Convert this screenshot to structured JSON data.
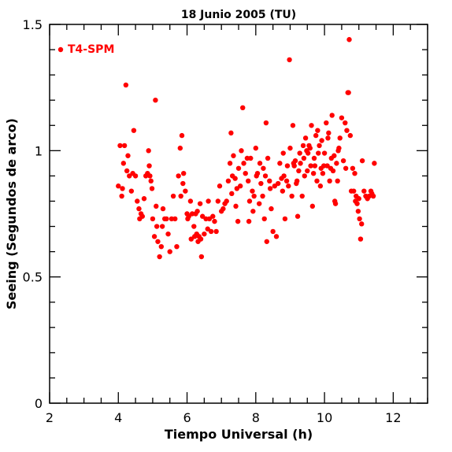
{
  "chart_data": {
    "type": "scatter",
    "title": "18 Junio 2005 (TU)",
    "xlabel": "Tiempo Universal (h)",
    "ylabel": "Seeing (Segundos de arco)",
    "xlim": [
      2,
      13
    ],
    "ylim": [
      0,
      1.5
    ],
    "x_ticks": [
      2,
      4,
      6,
      8,
      10,
      12
    ],
    "x_tick_labels": [
      "2",
      "4",
      "6",
      "8",
      "10",
      "12"
    ],
    "y_ticks": [
      0,
      0.5,
      1,
      1.5
    ],
    "y_tick_labels": [
      "0",
      "0.5",
      "1",
      "1.5"
    ],
    "grid": false,
    "legend_position": "top-left",
    "series": [
      {
        "name": "T4-SPM",
        "color": "#ff0000",
        "points": [
          [
            4.0,
            0.86
          ],
          [
            4.05,
            1.02
          ],
          [
            4.1,
            0.82
          ],
          [
            4.12,
            0.85
          ],
          [
            4.15,
            0.95
          ],
          [
            4.18,
            1.02
          ],
          [
            4.22,
            1.26
          ],
          [
            4.25,
            0.92
          ],
          [
            4.28,
            0.98
          ],
          [
            4.32,
            0.9
          ],
          [
            4.38,
            0.84
          ],
          [
            4.42,
            0.91
          ],
          [
            4.45,
            1.08
          ],
          [
            4.5,
            0.9
          ],
          [
            4.55,
            0.8
          ],
          [
            4.6,
            0.77
          ],
          [
            4.62,
            0.73
          ],
          [
            4.66,
            0.75
          ],
          [
            4.7,
            0.74
          ],
          [
            4.75,
            0.81
          ],
          [
            4.8,
            0.9
          ],
          [
            4.85,
            0.91
          ],
          [
            4.88,
            1.0
          ],
          [
            4.9,
            0.94
          ],
          [
            4.92,
            0.9
          ],
          [
            4.95,
            0.88
          ],
          [
            4.98,
            0.85
          ],
          [
            5.0,
            0.73
          ],
          [
            5.05,
            0.66
          ],
          [
            5.08,
            1.2
          ],
          [
            5.1,
            0.78
          ],
          [
            5.12,
            0.7
          ],
          [
            5.15,
            0.64
          ],
          [
            5.2,
            0.58
          ],
          [
            5.25,
            0.62
          ],
          [
            5.28,
            0.7
          ],
          [
            5.3,
            0.77
          ],
          [
            5.35,
            0.73
          ],
          [
            5.4,
            0.73
          ],
          [
            5.45,
            0.67
          ],
          [
            5.5,
            0.6
          ],
          [
            5.55,
            0.73
          ],
          [
            5.6,
            0.82
          ],
          [
            5.65,
            0.73
          ],
          [
            5.7,
            0.62
          ],
          [
            5.75,
            0.9
          ],
          [
            5.8,
            1.01
          ],
          [
            5.82,
            0.82
          ],
          [
            5.85,
            1.06
          ],
          [
            5.88,
            0.87
          ],
          [
            5.9,
            0.91
          ],
          [
            5.95,
            0.84
          ],
          [
            6.0,
            0.75
          ],
          [
            6.02,
            0.73
          ],
          [
            6.05,
            0.74
          ],
          [
            6.1,
            0.8
          ],
          [
            6.12,
            0.65
          ],
          [
            6.15,
            0.75
          ],
          [
            6.2,
            0.7
          ],
          [
            6.22,
            0.66
          ],
          [
            6.25,
            0.75
          ],
          [
            6.28,
            0.67
          ],
          [
            6.3,
            0.76
          ],
          [
            6.32,
            0.64
          ],
          [
            6.35,
            0.66
          ],
          [
            6.38,
            0.79
          ],
          [
            6.4,
            0.65
          ],
          [
            6.42,
            0.58
          ],
          [
            6.45,
            0.74
          ],
          [
            6.5,
            0.67
          ],
          [
            6.55,
            0.73
          ],
          [
            6.6,
            0.69
          ],
          [
            6.62,
            0.8
          ],
          [
            6.65,
            0.73
          ],
          [
            6.7,
            0.68
          ],
          [
            6.75,
            0.74
          ],
          [
            6.8,
            0.72
          ],
          [
            6.85,
            0.68
          ],
          [
            6.9,
            0.8
          ],
          [
            6.95,
            0.86
          ],
          [
            7.0,
            0.76
          ],
          [
            7.05,
            0.77
          ],
          [
            7.1,
            0.79
          ],
          [
            7.15,
            0.8
          ],
          [
            7.2,
            0.88
          ],
          [
            7.25,
            0.95
          ],
          [
            7.28,
            1.07
          ],
          [
            7.3,
            0.83
          ],
          [
            7.32,
            0.9
          ],
          [
            7.35,
            0.98
          ],
          [
            7.4,
            0.89
          ],
          [
            7.42,
            0.78
          ],
          [
            7.45,
            0.85
          ],
          [
            7.48,
            0.72
          ],
          [
            7.5,
            0.93
          ],
          [
            7.55,
            0.86
          ],
          [
            7.58,
            1.0
          ],
          [
            7.62,
            1.17
          ],
          [
            7.65,
            0.95
          ],
          [
            7.7,
            0.91
          ],
          [
            7.75,
            0.97
          ],
          [
            7.78,
            0.88
          ],
          [
            7.8,
            0.72
          ],
          [
            7.82,
            0.8
          ],
          [
            7.85,
            0.97
          ],
          [
            7.9,
            0.84
          ],
          [
            7.92,
            0.76
          ],
          [
            7.95,
            0.82
          ],
          [
            8.0,
            1.01
          ],
          [
            8.02,
            0.9
          ],
          [
            8.05,
            0.91
          ],
          [
            8.1,
            0.79
          ],
          [
            8.12,
            0.95
          ],
          [
            8.15,
            0.87
          ],
          [
            8.2,
            0.82
          ],
          [
            8.22,
            0.93
          ],
          [
            8.25,
            0.73
          ],
          [
            8.28,
            0.9
          ],
          [
            8.3,
            1.11
          ],
          [
            8.32,
            0.64
          ],
          [
            8.35,
            0.97
          ],
          [
            8.4,
            0.88
          ],
          [
            8.42,
            0.85
          ],
          [
            8.45,
            0.77
          ],
          [
            8.5,
            0.68
          ],
          [
            8.55,
            0.86
          ],
          [
            8.6,
            0.66
          ],
          [
            8.65,
            0.87
          ],
          [
            8.7,
            0.95
          ],
          [
            8.75,
            0.89
          ],
          [
            8.78,
            0.84
          ],
          [
            8.8,
            0.99
          ],
          [
            8.82,
            0.9
          ],
          [
            8.85,
            0.73
          ],
          [
            8.9,
            0.88
          ],
          [
            8.92,
            0.94
          ],
          [
            8.95,
            0.86
          ],
          [
            8.98,
            1.36
          ],
          [
            9.0,
            1.01
          ],
          [
            9.05,
            0.82
          ],
          [
            9.08,
            1.1
          ],
          [
            9.1,
            0.95
          ],
          [
            9.12,
            0.94
          ],
          [
            9.15,
            0.96
          ],
          [
            9.18,
            0.87
          ],
          [
            9.2,
            0.88
          ],
          [
            9.22,
            0.74
          ],
          [
            9.25,
            0.92
          ],
          [
            9.28,
            0.99
          ],
          [
            9.3,
            0.95
          ],
          [
            9.35,
            0.82
          ],
          [
            9.38,
            1.02
          ],
          [
            9.4,
            0.97
          ],
          [
            9.42,
            0.9
          ],
          [
            9.45,
            1.05
          ],
          [
            9.48,
            1.0
          ],
          [
            9.5,
            0.92
          ],
          [
            9.52,
            0.99
          ],
          [
            9.55,
            1.02
          ],
          [
            9.58,
            1.01
          ],
          [
            9.6,
            0.94
          ],
          [
            9.62,
            1.1
          ],
          [
            9.65,
            0.78
          ],
          [
            9.68,
            0.91
          ],
          [
            9.7,
            0.97
          ],
          [
            9.72,
            0.94
          ],
          [
            9.75,
            1.06
          ],
          [
            9.78,
            0.88
          ],
          [
            9.8,
            1.08
          ],
          [
            9.82,
            0.99
          ],
          [
            9.85,
            1.02
          ],
          [
            9.88,
            0.86
          ],
          [
            9.9,
            0.93
          ],
          [
            9.92,
            1.04
          ],
          [
            9.95,
            0.91
          ],
          [
            9.98,
            0.94
          ],
          [
            10.0,
            0.99
          ],
          [
            10.05,
            1.11
          ],
          [
            10.08,
            0.94
          ],
          [
            10.1,
            1.05
          ],
          [
            10.12,
            1.07
          ],
          [
            10.15,
            0.88
          ],
          [
            10.18,
            0.93
          ],
          [
            10.2,
            0.97
          ],
          [
            10.22,
            1.14
          ],
          [
            10.25,
            0.92
          ],
          [
            10.28,
            0.98
          ],
          [
            10.3,
            0.8
          ],
          [
            10.32,
            0.79
          ],
          [
            10.35,
            0.95
          ],
          [
            10.38,
            0.88
          ],
          [
            10.4,
            1.0
          ],
          [
            10.42,
            1.01
          ],
          [
            10.45,
            1.05
          ],
          [
            10.5,
            1.13
          ],
          [
            10.55,
            0.96
          ],
          [
            10.6,
            1.11
          ],
          [
            10.62,
            0.93
          ],
          [
            10.65,
            1.08
          ],
          [
            10.68,
            1.23
          ],
          [
            10.7,
            1.23
          ],
          [
            10.72,
            1.44
          ],
          [
            10.75,
            1.06
          ],
          [
            10.78,
            0.84
          ],
          [
            10.82,
            0.93
          ],
          [
            10.85,
            0.84
          ],
          [
            10.88,
            0.91
          ],
          [
            10.9,
            0.8
          ],
          [
            10.92,
            0.82
          ],
          [
            10.95,
            0.79
          ],
          [
            10.98,
            0.76
          ],
          [
            11.0,
            0.81
          ],
          [
            11.02,
            0.73
          ],
          [
            11.05,
            0.65
          ],
          [
            11.08,
            0.71
          ],
          [
            11.1,
            0.96
          ],
          [
            11.15,
            0.84
          ],
          [
            11.2,
            0.82
          ],
          [
            11.25,
            0.81
          ],
          [
            11.3,
            0.82
          ],
          [
            11.35,
            0.84
          ],
          [
            11.38,
            0.83
          ],
          [
            11.42,
            0.82
          ],
          [
            11.45,
            0.95
          ]
        ]
      }
    ]
  }
}
